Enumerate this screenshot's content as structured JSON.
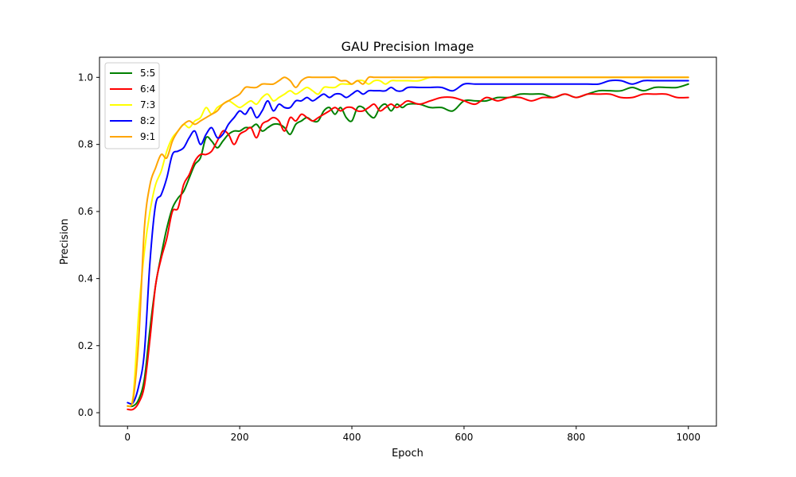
{
  "chart_data": {
    "type": "line",
    "title": "GAU Precision Image",
    "xlabel": "Epoch",
    "ylabel": "Precision",
    "xlim": [
      -50,
      1050
    ],
    "ylim": [
      -0.04,
      1.06
    ],
    "xticks": [
      0,
      200,
      400,
      600,
      800,
      1000
    ],
    "yticks": [
      0.0,
      0.2,
      0.4,
      0.6,
      0.8,
      1.0
    ],
    "xtick_labels": [
      "0",
      "200",
      "400",
      "600",
      "800",
      "1000"
    ],
    "ytick_labels": [
      "0.0",
      "0.2",
      "0.4",
      "0.6",
      "0.8",
      "1.0"
    ],
    "grid": false,
    "legend_position": "top-left",
    "series": [
      {
        "name": "5:5",
        "color": "#008000",
        "x": [
          0,
          10,
          20,
          30,
          40,
          50,
          60,
          70,
          80,
          90,
          100,
          110,
          120,
          130,
          140,
          150,
          160,
          170,
          180,
          190,
          200,
          210,
          220,
          230,
          240,
          250,
          260,
          270,
          280,
          290,
          300,
          310,
          320,
          330,
          340,
          350,
          360,
          370,
          380,
          390,
          400,
          410,
          420,
          430,
          440,
          450,
          460,
          470,
          480,
          490,
          500,
          520,
          540,
          560,
          580,
          600,
          620,
          640,
          660,
          680,
          700,
          720,
          740,
          760,
          780,
          800,
          820,
          840,
          860,
          880,
          900,
          920,
          940,
          960,
          980,
          1000
        ],
        "y": [
          0.02,
          0.02,
          0.04,
          0.1,
          0.25,
          0.38,
          0.47,
          0.55,
          0.61,
          0.64,
          0.66,
          0.7,
          0.74,
          0.76,
          0.82,
          0.81,
          0.79,
          0.81,
          0.83,
          0.84,
          0.84,
          0.85,
          0.85,
          0.86,
          0.84,
          0.85,
          0.86,
          0.86,
          0.85,
          0.83,
          0.86,
          0.87,
          0.88,
          0.87,
          0.87,
          0.9,
          0.91,
          0.89,
          0.91,
          0.88,
          0.87,
          0.91,
          0.91,
          0.89,
          0.88,
          0.91,
          0.92,
          0.9,
          0.92,
          0.91,
          0.92,
          0.92,
          0.91,
          0.91,
          0.9,
          0.93,
          0.93,
          0.93,
          0.94,
          0.94,
          0.95,
          0.95,
          0.95,
          0.94,
          0.95,
          0.94,
          0.95,
          0.96,
          0.96,
          0.96,
          0.97,
          0.96,
          0.97,
          0.97,
          0.97,
          0.98
        ]
      },
      {
        "name": "6:4",
        "color": "#ff0000",
        "x": [
          0,
          10,
          20,
          30,
          40,
          50,
          60,
          70,
          80,
          90,
          100,
          110,
          120,
          130,
          140,
          150,
          160,
          170,
          180,
          190,
          200,
          210,
          220,
          230,
          240,
          250,
          260,
          270,
          280,
          290,
          300,
          310,
          320,
          330,
          340,
          350,
          360,
          370,
          380,
          390,
          400,
          410,
          420,
          430,
          440,
          450,
          460,
          470,
          480,
          490,
          500,
          520,
          540,
          560,
          580,
          600,
          620,
          640,
          660,
          680,
          700,
          720,
          740,
          760,
          780,
          800,
          820,
          840,
          860,
          880,
          900,
          920,
          940,
          960,
          980,
          1000
        ],
        "y": [
          0.01,
          0.01,
          0.03,
          0.08,
          0.22,
          0.38,
          0.46,
          0.52,
          0.6,
          0.61,
          0.68,
          0.71,
          0.75,
          0.77,
          0.77,
          0.78,
          0.81,
          0.84,
          0.83,
          0.8,
          0.83,
          0.84,
          0.85,
          0.82,
          0.86,
          0.87,
          0.88,
          0.87,
          0.84,
          0.88,
          0.87,
          0.89,
          0.88,
          0.87,
          0.88,
          0.89,
          0.9,
          0.91,
          0.9,
          0.91,
          0.91,
          0.9,
          0.9,
          0.91,
          0.92,
          0.9,
          0.91,
          0.92,
          0.91,
          0.92,
          0.93,
          0.92,
          0.93,
          0.94,
          0.94,
          0.93,
          0.92,
          0.94,
          0.93,
          0.94,
          0.94,
          0.93,
          0.94,
          0.94,
          0.95,
          0.94,
          0.95,
          0.95,
          0.95,
          0.94,
          0.94,
          0.95,
          0.95,
          0.95,
          0.94,
          0.94
        ]
      },
      {
        "name": "7:3",
        "color": "#ffff00",
        "x": [
          0,
          10,
          20,
          30,
          40,
          50,
          60,
          70,
          80,
          90,
          100,
          110,
          120,
          130,
          140,
          150,
          160,
          170,
          180,
          190,
          200,
          210,
          220,
          230,
          240,
          250,
          260,
          270,
          280,
          290,
          300,
          310,
          320,
          330,
          340,
          350,
          360,
          370,
          380,
          390,
          400,
          410,
          420,
          430,
          440,
          450,
          460,
          470,
          480,
          490,
          500,
          520,
          540,
          560,
          580,
          600,
          620,
          640,
          660,
          680,
          700,
          720,
          740,
          760,
          780,
          800,
          820,
          840,
          860,
          880,
          900,
          920,
          940,
          960,
          980,
          1000
        ],
        "y": [
          0.02,
          0.05,
          0.3,
          0.48,
          0.6,
          0.68,
          0.72,
          0.78,
          0.82,
          0.84,
          0.86,
          0.85,
          0.87,
          0.88,
          0.91,
          0.89,
          0.91,
          0.92,
          0.93,
          0.92,
          0.91,
          0.92,
          0.93,
          0.92,
          0.94,
          0.95,
          0.93,
          0.94,
          0.95,
          0.96,
          0.95,
          0.96,
          0.97,
          0.96,
          0.95,
          0.97,
          0.97,
          0.97,
          0.98,
          0.98,
          0.98,
          0.99,
          0.99,
          0.98,
          0.99,
          0.99,
          0.98,
          0.99,
          0.99,
          0.99,
          0.99,
          0.99,
          1.0,
          1.0,
          1.0,
          1.0,
          1.0,
          1.0,
          1.0,
          1.0,
          1.0,
          1.0,
          1.0,
          1.0,
          1.0,
          1.0,
          1.0,
          1.0,
          1.0,
          1.0,
          1.0,
          1.0,
          1.0,
          1.0,
          1.0,
          1.0
        ]
      },
      {
        "name": "8:2",
        "color": "#0000ff",
        "x": [
          0,
          10,
          20,
          30,
          40,
          50,
          60,
          70,
          80,
          90,
          100,
          110,
          120,
          130,
          140,
          150,
          160,
          170,
          180,
          190,
          200,
          210,
          220,
          230,
          240,
          250,
          260,
          270,
          280,
          290,
          300,
          310,
          320,
          330,
          340,
          350,
          360,
          370,
          380,
          390,
          400,
          410,
          420,
          430,
          440,
          450,
          460,
          470,
          480,
          490,
          500,
          520,
          540,
          560,
          580,
          600,
          620,
          640,
          660,
          680,
          700,
          720,
          740,
          760,
          780,
          800,
          820,
          840,
          860,
          880,
          900,
          920,
          940,
          960,
          980,
          1000
        ],
        "y": [
          0.03,
          0.03,
          0.08,
          0.18,
          0.45,
          0.62,
          0.65,
          0.7,
          0.77,
          0.78,
          0.79,
          0.82,
          0.84,
          0.8,
          0.83,
          0.85,
          0.82,
          0.83,
          0.86,
          0.88,
          0.9,
          0.89,
          0.91,
          0.88,
          0.9,
          0.93,
          0.9,
          0.92,
          0.91,
          0.91,
          0.93,
          0.93,
          0.94,
          0.93,
          0.94,
          0.95,
          0.94,
          0.95,
          0.95,
          0.94,
          0.95,
          0.96,
          0.95,
          0.96,
          0.96,
          0.96,
          0.96,
          0.97,
          0.96,
          0.96,
          0.97,
          0.97,
          0.97,
          0.97,
          0.96,
          0.98,
          0.98,
          0.98,
          0.98,
          0.98,
          0.98,
          0.98,
          0.98,
          0.98,
          0.98,
          0.98,
          0.98,
          0.98,
          0.99,
          0.99,
          0.98,
          0.99,
          0.99,
          0.99,
          0.99,
          0.99
        ]
      },
      {
        "name": "9:1",
        "color": "#ffa500",
        "x": [
          0,
          10,
          20,
          30,
          40,
          50,
          60,
          70,
          80,
          90,
          100,
          110,
          120,
          130,
          140,
          150,
          160,
          170,
          180,
          190,
          200,
          210,
          220,
          230,
          240,
          250,
          260,
          270,
          280,
          290,
          300,
          310,
          320,
          330,
          340,
          350,
          360,
          370,
          380,
          390,
          400,
          410,
          420,
          430,
          440,
          450,
          460,
          470,
          480,
          490,
          500,
          520,
          540,
          560,
          580,
          600,
          620,
          640,
          660,
          680,
          700,
          720,
          740,
          760,
          780,
          800,
          820,
          840,
          860,
          880,
          900,
          920,
          940,
          960,
          980,
          1000
        ],
        "y": [
          0.02,
          0.04,
          0.22,
          0.55,
          0.68,
          0.73,
          0.77,
          0.76,
          0.81,
          0.84,
          0.86,
          0.87,
          0.86,
          0.87,
          0.88,
          0.89,
          0.9,
          0.92,
          0.93,
          0.94,
          0.95,
          0.97,
          0.97,
          0.97,
          0.98,
          0.98,
          0.98,
          0.99,
          1.0,
          0.99,
          0.97,
          0.99,
          1.0,
          1.0,
          1.0,
          1.0,
          1.0,
          1.0,
          0.99,
          0.99,
          0.98,
          0.99,
          0.98,
          1.0,
          1.0,
          1.0,
          1.0,
          1.0,
          1.0,
          1.0,
          1.0,
          1.0,
          1.0,
          1.0,
          1.0,
          1.0,
          1.0,
          1.0,
          1.0,
          1.0,
          1.0,
          1.0,
          1.0,
          1.0,
          1.0,
          1.0,
          1.0,
          1.0,
          1.0,
          1.0,
          1.0,
          1.0,
          1.0,
          1.0,
          1.0,
          1.0
        ]
      }
    ]
  }
}
